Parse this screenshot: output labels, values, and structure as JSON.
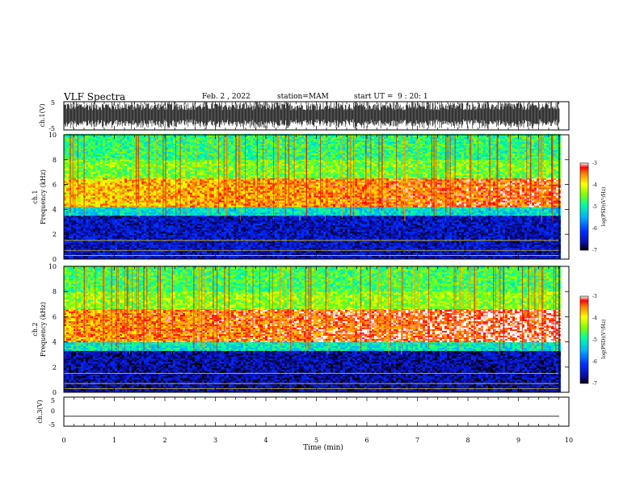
{
  "header": {
    "title": "VLF Spectra",
    "date": "Feb. 2 , 2022",
    "station": "station=MAM",
    "start": "start UT =  9 : 20: 1"
  },
  "chart_data": [
    {
      "type": "line",
      "panel": "ch1-waveform",
      "ylabel": "ch.1(V)",
      "ylim": [
        -5,
        5
      ],
      "yticks": [
        "5",
        "-5"
      ],
      "xlim": [
        0,
        10
      ],
      "description_values": "dense noisy waveform, amplitude approx -5 to 5 V"
    },
    {
      "type": "heatmap",
      "panel": "ch1-spectrogram",
      "ylabel_top": "ch.1",
      "ylabel": "Frequency (kHz)",
      "ylim": [
        0,
        10
      ],
      "yticks": [
        "0",
        "2",
        "4",
        "6",
        "8",
        "10"
      ],
      "xlim": [
        0,
        10
      ],
      "bands": [
        {
          "from_khz": 0,
          "to_khz": 3.5,
          "level": -6.5
        },
        {
          "from_khz": 3.5,
          "to_khz": 4.2,
          "level": -5.2
        },
        {
          "from_khz": 4.2,
          "to_khz": 6.5,
          "level": -3.8
        },
        {
          "from_khz": 6.5,
          "to_khz": 8.0,
          "level": -4.5
        },
        {
          "from_khz": 8.0,
          "to_khz": 10,
          "level": -4.8
        }
      ],
      "colorbar": {
        "label": "log(PSD)(V²/Hz)",
        "ticks": [
          "-3",
          "-4",
          "-5",
          "-6",
          "-7"
        ],
        "range": [
          -7,
          -3
        ]
      }
    },
    {
      "type": "heatmap",
      "panel": "ch2-spectrogram",
      "ylabel_top": "ch.2",
      "ylabel": "Frequency (kHz)",
      "ylim": [
        0,
        10
      ],
      "yticks": [
        "0",
        "2",
        "4",
        "6",
        "8",
        "10"
      ],
      "xlim": [
        0,
        10
      ],
      "bands": [
        {
          "from_khz": 0,
          "to_khz": 3.3,
          "level": -6.6
        },
        {
          "from_khz": 3.3,
          "to_khz": 4.0,
          "level": -5.1
        },
        {
          "from_khz": 4.0,
          "to_khz": 6.6,
          "level": -3.6
        },
        {
          "from_khz": 6.6,
          "to_khz": 8.0,
          "level": -4.4
        },
        {
          "from_khz": 8.0,
          "to_khz": 10,
          "level": -4.7
        }
      ],
      "colorbar": {
        "label": "log(PSD)(V²/Hz)",
        "ticks": [
          "-3",
          "-4",
          "-5",
          "-6",
          "-7"
        ],
        "range": [
          -7,
          -3
        ]
      }
    },
    {
      "type": "line",
      "panel": "ch3-waveform",
      "ylabel": "ch.3(V)",
      "ylim": [
        -5,
        5
      ],
      "yticks": [
        "5",
        "0",
        "-5"
      ],
      "xlim": [
        0,
        10
      ],
      "xlabel": "Time  (min)",
      "xticks": [
        "0",
        "1",
        "2",
        "3",
        "4",
        "5",
        "6",
        "7",
        "8",
        "9",
        "10"
      ],
      "values_constant": -1.5
    }
  ]
}
